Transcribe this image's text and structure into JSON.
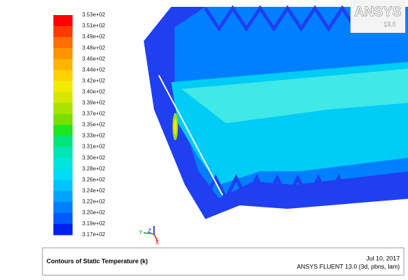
{
  "colorbar": {
    "labels": [
      "3.53e+02",
      "3.51e+02",
      "3.49e+02",
      "3.48e+02",
      "3.46e+02",
      "3.44e+02",
      "3.42e+02",
      "3.40e+02",
      "3.39e+02",
      "3.37e+02",
      "3.35e+02",
      "3.33e+02",
      "3.31e+02",
      "3.30e+02",
      "3.28e+02",
      "3.26e+02",
      "3.24e+02",
      "3.22e+02",
      "3.20e+02",
      "3.19e+02",
      "3.17e+02"
    ],
    "colors": [
      "#ff0000",
      "#ff3a00",
      "#ff6e00",
      "#ff9400",
      "#ffb400",
      "#ffd200",
      "#f2ea00",
      "#d4e800",
      "#a8e400",
      "#78e000",
      "#1ee61e",
      "#00e67a",
      "#00e6b4",
      "#00e6dc",
      "#00dcf5",
      "#00c4ff",
      "#00a4ff",
      "#0080ff",
      "#005aff",
      "#0020f0"
    ]
  },
  "logo": {
    "brand": "ANSYS",
    "version": "13.0"
  },
  "triad": {
    "y": "Y",
    "z": "Z",
    "x": "X"
  },
  "footer": {
    "title": "Contours of Static Temperature (k)",
    "date": "Jul 10, 2017",
    "version": "ANSYS FLUENT 13.0 (3d, pbns, lam)"
  }
}
